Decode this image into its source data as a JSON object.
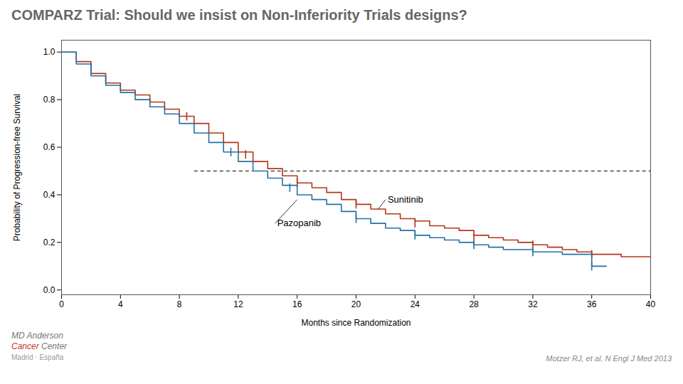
{
  "chart_data": {
    "type": "step",
    "title": "COMPARZ Trial: Should we insist on Non-Inferiority Trials designs?",
    "xlabel": "Months since Randomization",
    "ylabel": "Probability of Progression-free Survival",
    "xlim": [
      0,
      40
    ],
    "ylim": [
      -0.02,
      1.05
    ],
    "xticks": [
      0,
      4,
      8,
      12,
      16,
      20,
      24,
      28,
      32,
      36,
      40
    ],
    "yticks": [
      {
        "value": 0.0,
        "label": "0.0"
      },
      {
        "value": 0.2,
        "label": "0.2"
      },
      {
        "value": 0.4,
        "label": "0.4"
      },
      {
        "value": 0.6,
        "label": "0.6"
      },
      {
        "value": 0.8,
        "label": "0.8"
      },
      {
        "value": 1.0,
        "label": "1.0"
      }
    ],
    "grid": false,
    "series": [
      {
        "name": "Sunitinib",
        "color": "#b5341a",
        "x": [
          0,
          1,
          2,
          3,
          4,
          5,
          6,
          7,
          8,
          9,
          10,
          11,
          12,
          13,
          14,
          15,
          16,
          17,
          18,
          19,
          20,
          21,
          22,
          23,
          24,
          25,
          26,
          27,
          28,
          29,
          30,
          31,
          32,
          33,
          34,
          35,
          36,
          37,
          38,
          39,
          40
        ],
        "values": [
          1.0,
          0.96,
          0.91,
          0.87,
          0.84,
          0.82,
          0.79,
          0.76,
          0.73,
          0.7,
          0.66,
          0.62,
          0.58,
          0.54,
          0.51,
          0.48,
          0.45,
          0.43,
          0.41,
          0.38,
          0.36,
          0.34,
          0.32,
          0.3,
          0.29,
          0.27,
          0.26,
          0.25,
          0.23,
          0.22,
          0.21,
          0.2,
          0.19,
          0.18,
          0.17,
          0.16,
          0.15,
          0.15,
          0.14,
          0.14,
          0.14
        ],
        "censored": {
          "x": [
            8.5,
            12.5,
            16,
            20,
            24,
            28,
            32,
            36
          ],
          "y": [
            0.73,
            0.57,
            0.45,
            0.36,
            0.28,
            0.22,
            0.19,
            0.15
          ]
        }
      },
      {
        "name": "Pazopanib",
        "color": "#2471a3",
        "x": [
          0,
          1,
          2,
          3,
          4,
          5,
          6,
          7,
          8,
          9,
          10,
          11,
          12,
          13,
          14,
          15,
          16,
          17,
          18,
          19,
          20,
          21,
          22,
          23,
          24,
          25,
          26,
          27,
          28,
          29,
          30,
          31,
          32,
          33,
          34,
          35,
          36,
          37
        ],
        "values": [
          1.0,
          0.95,
          0.9,
          0.86,
          0.83,
          0.8,
          0.77,
          0.74,
          0.7,
          0.66,
          0.62,
          0.58,
          0.54,
          0.5,
          0.47,
          0.44,
          0.4,
          0.38,
          0.36,
          0.33,
          0.3,
          0.28,
          0.26,
          0.25,
          0.23,
          0.22,
          0.21,
          0.2,
          0.19,
          0.18,
          0.17,
          0.17,
          0.16,
          0.16,
          0.15,
          0.15,
          0.1,
          0.1
        ],
        "censored": {
          "x": [
            11.5,
            15.5,
            20,
            24,
            28,
            32,
            36
          ],
          "y": [
            0.58,
            0.43,
            0.3,
            0.23,
            0.19,
            0.16,
            0.1
          ]
        }
      }
    ],
    "reference_line": {
      "y": 0.5,
      "x_from": 9.0,
      "x_to": 40,
      "color": "black",
      "line_style": "dashed"
    },
    "annotations": [
      {
        "text": "Sunitinib",
        "x": 22,
        "y": 0.38,
        "point_x": 21.5,
        "point_y": 0.34
      },
      {
        "text": "Pazopanib",
        "x": 14.5,
        "y": 0.28,
        "point_x": 16.0,
        "point_y": 0.38
      }
    ],
    "source": "Motzer RJ, et al. N Engl J Med 2013",
    "logo": [
      {
        "text": "MD Anderson"
      },
      {
        "text": "Cancer",
        "color": "#c0392b"
      },
      {
        "text": "Center"
      },
      {
        "text": "Madrid · España"
      }
    ]
  }
}
